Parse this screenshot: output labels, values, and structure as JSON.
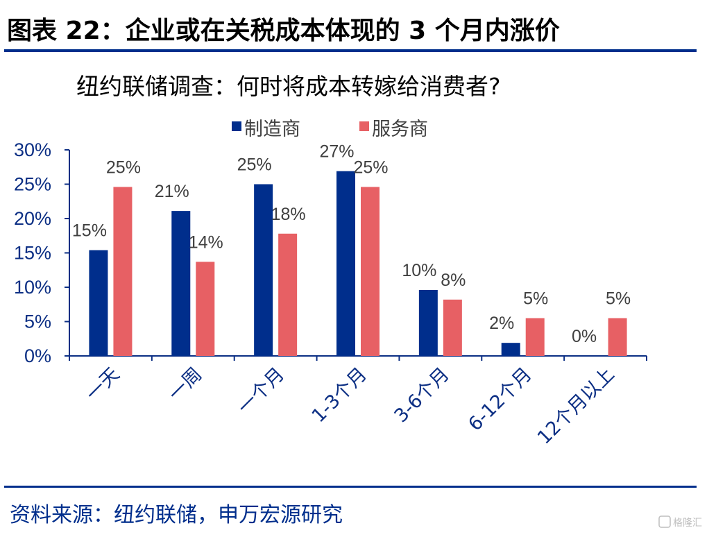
{
  "figure": {
    "title": "图表 22：企业或在关税成本体现的 3 个月内涨价"
  },
  "source": {
    "text": "资料来源：纽约联储，申万宏源研究"
  },
  "watermark": {
    "text": "格隆汇"
  },
  "colors": {
    "navy": "#002e8c",
    "manufacturer": "#002e8c",
    "service": "#e76064",
    "axis": "#0c2f84",
    "text": "#404040"
  },
  "chart_data": {
    "type": "bar",
    "title": "纽约联储调查：何时将成本转嫁给消费者?",
    "categories": [
      "一天",
      "一周",
      "一个月",
      "1-3个月",
      "3-6个月",
      "6-12个月",
      "12个月以上"
    ],
    "series": [
      {
        "name": "制造商",
        "values": [
          15.4,
          21.1,
          25.0,
          26.9,
          9.6,
          1.9,
          0
        ],
        "labels": [
          "15%",
          "21%",
          "25%",
          "27%",
          "10%",
          "2%",
          "0%"
        ],
        "color": "#002e8c"
      },
      {
        "name": "服务商",
        "values": [
          24.6,
          13.7,
          17.8,
          24.6,
          8.2,
          5.5,
          5.5
        ],
        "labels": [
          "25%",
          "14%",
          "18%",
          "25%",
          "8%",
          "5%",
          "5%"
        ],
        "color": "#e76064"
      }
    ],
    "yticks": [
      "0%",
      "5%",
      "10%",
      "15%",
      "20%",
      "25%",
      "30%"
    ],
    "ylim": [
      0,
      30
    ],
    "xlabel": "",
    "ylabel": "",
    "legend_position": "top",
    "grid": false
  }
}
